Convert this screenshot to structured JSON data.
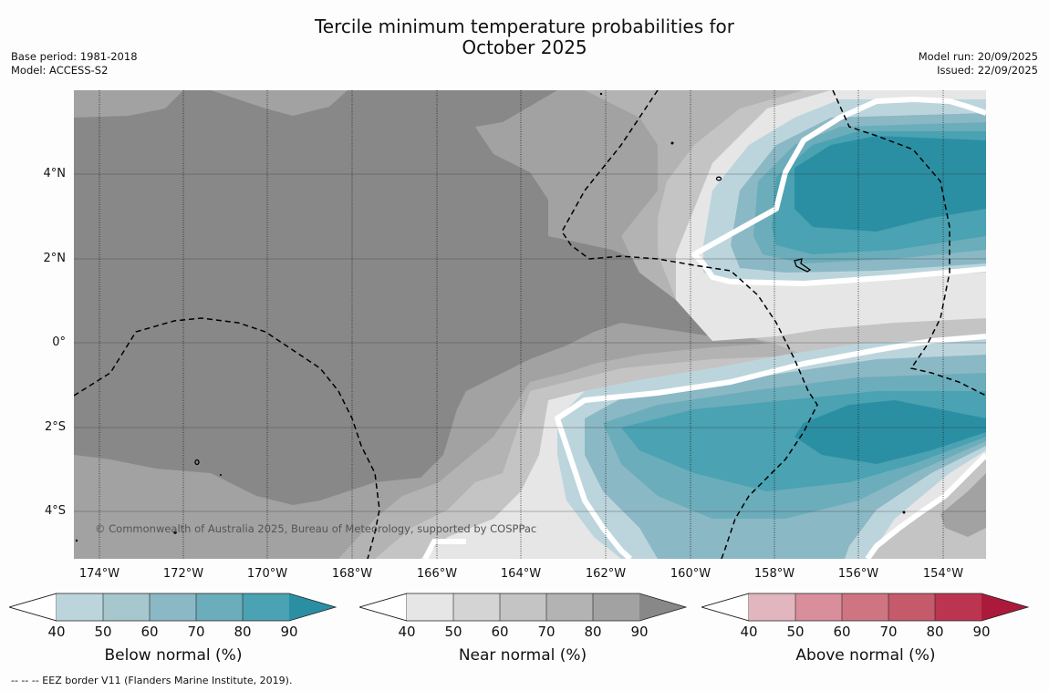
{
  "title": {
    "line1": "Tercile minimum temperature probabilities for",
    "line2": "October 2025"
  },
  "meta_left": {
    "base_period": "Base period: 1981-2018",
    "model": "Model: ACCESS-S2"
  },
  "meta_right": {
    "model_run": "Model run: 20/09/2025",
    "issued": "Issued: 22/09/2025"
  },
  "map": {
    "lat_labels": [
      "4°N",
      "2°N",
      "0°",
      "2°S",
      "4°S"
    ],
    "lon_labels": [
      "174°W",
      "172°W",
      "170°W",
      "168°W",
      "166°W",
      "164°W",
      "162°W",
      "160°W",
      "158°W",
      "156°W",
      "154°W"
    ],
    "credit": "© Commonwealth of Australia 2025, Bureau of Meteorology, supported by COSPPac"
  },
  "colorbars": [
    {
      "title": "Below normal (%)",
      "ticks": [
        "40",
        "50",
        "60",
        "70",
        "80",
        "90"
      ],
      "colors": [
        "#ffffff",
        "#bcd5dc",
        "#a5c7cd",
        "#8bb8c5",
        "#6badbb",
        "#4aa2b2",
        "#2b8fa3"
      ]
    },
    {
      "title": "Near normal (%)",
      "ticks": [
        "40",
        "50",
        "60",
        "70",
        "80",
        "90"
      ],
      "colors": [
        "#ffffff",
        "#e6e6e6",
        "#d4d4d4",
        "#c4c4c4",
        "#b3b3b3",
        "#a2a2a2",
        "#888888"
      ]
    },
    {
      "title": "Above normal (%)",
      "ticks": [
        "40",
        "50",
        "60",
        "70",
        "80",
        "90"
      ],
      "colors": [
        "#ffffff",
        "#e2b6bf",
        "#d98f9b",
        "#cf7581",
        "#c55a6a",
        "#bc3550",
        "#ab1a3a"
      ]
    }
  ],
  "footnote": "--  --  -- EEZ border V11 (Flanders Marine Institute, 2019)."
}
